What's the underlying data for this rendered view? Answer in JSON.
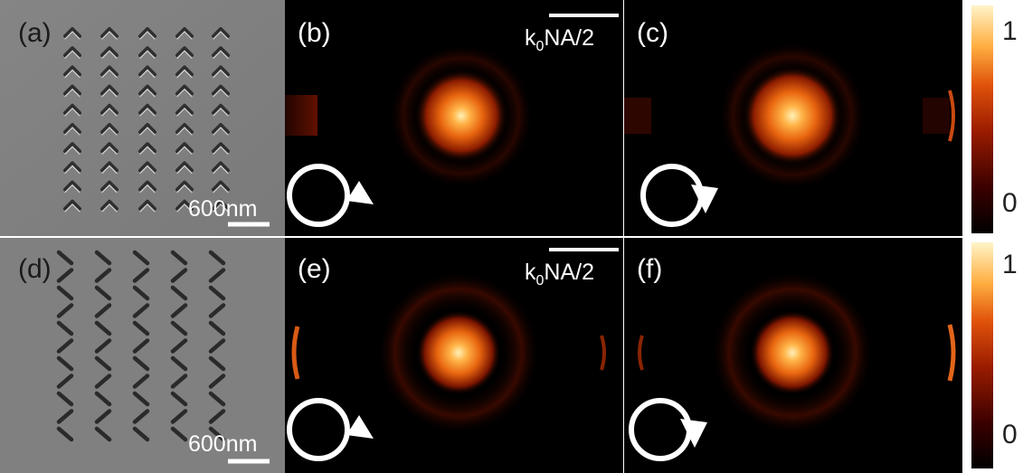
{
  "panels": {
    "a": {
      "label": "(a)",
      "scale_text": "600nm"
    },
    "b": {
      "label": "(b)",
      "scale_text_main": "k",
      "scale_text_sub": "0",
      "scale_text_rest": "NA/2"
    },
    "c": {
      "label": "(c)"
    },
    "d": {
      "label": "(d)",
      "scale_text": "600nm"
    },
    "e": {
      "label": "(e)",
      "scale_text_main": "k",
      "scale_text_sub": "0",
      "scale_text_rest": "NA/2"
    },
    "f": {
      "label": "(f)"
    }
  },
  "colorbars": [
    {
      "max_label": "1",
      "min_label": "0"
    },
    {
      "max_label": "1",
      "min_label": "0"
    }
  ],
  "colors": {
    "colormap": [
      "#000000",
      "#3a0000",
      "#9b1c00",
      "#e0520a",
      "#ffae40",
      "#fff4c8"
    ],
    "sem_background": "#808080"
  }
}
